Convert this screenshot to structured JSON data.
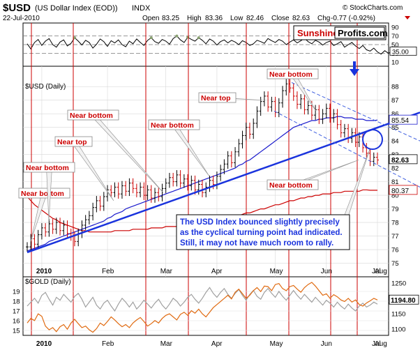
{
  "header": {
    "symbol": "$USD",
    "name": "(US Dollar Index (EOD))",
    "exchange": "INDX",
    "date": "22-Jul-2010",
    "open_label": "Open",
    "open": "83.25",
    "high_label": "High",
    "high": "83.36",
    "low_label": "Low",
    "low": "82.46",
    "close_label": "Close",
    "close": "82.63",
    "chg_label": "Chg",
    "chg": "-0.77 (-0.92%)",
    "copyright": "© StockCharts.com"
  },
  "logo": {
    "part1": "Sunshine",
    "part2": "Profits.com"
  },
  "colors": {
    "price": "#000000",
    "up": "#000000",
    "down": "#cc0000",
    "ma50": "#1a1acc",
    "ma200": "#cc0000",
    "trend": "#1a33dd",
    "channel": "#4060e0",
    "annotation_red": "#cc0000",
    "gold": "#e06a10",
    "usd_overlay": "#a0a0a0",
    "rsi": "#000000",
    "vline": "#cc0000"
  },
  "chart_data": [
    {
      "type": "line",
      "title": "RSI oscillator",
      "ylim": [
        0,
        100
      ],
      "y_ticks": [
        "90",
        "70",
        "50",
        "30",
        "10"
      ],
      "last_value_label": "35.00",
      "values": [
        52,
        40,
        55,
        62,
        48,
        58,
        64,
        50,
        44,
        56,
        61,
        47,
        53,
        66,
        58,
        49,
        60,
        55,
        42,
        51,
        63,
        57,
        46,
        59,
        54,
        61,
        50,
        45,
        58,
        52,
        63,
        55,
        48,
        60,
        66,
        57,
        53,
        62,
        58,
        51,
        64,
        70,
        61,
        55,
        67,
        62,
        58,
        66,
        60,
        52,
        63,
        58,
        49,
        57,
        61,
        54,
        60,
        56,
        50,
        59,
        55,
        48,
        52,
        60,
        57,
        53,
        64,
        59,
        55,
        62,
        58,
        50,
        56,
        61,
        54,
        59,
        65,
        57,
        52,
        60,
        56,
        49,
        55,
        58,
        48,
        52,
        57,
        44,
        50,
        55,
        47,
        41,
        48,
        38,
        35,
        42,
        33,
        28,
        36,
        30,
        33,
        37,
        35
      ]
    },
    {
      "type": "line",
      "title": "$USD (Daily)",
      "xlabel": "",
      "ylabel": "",
      "ylim": [
        74,
        89.5
      ],
      "y_ticks": [
        "88",
        "87",
        "86",
        "85",
        "84",
        "83",
        "82",
        "81",
        "80",
        "79",
        "78",
        "77",
        "76",
        "75"
      ],
      "x_ticks": [
        "2010",
        "Feb",
        "Mar",
        "Apr",
        "May",
        "Jun",
        "Jul",
        "Aug"
      ],
      "close": [
        76.2,
        76.8,
        76.4,
        77.1,
        77.6,
        77.3,
        77.9,
        77.5,
        78.0,
        77.4,
        77.8,
        77.2,
        77.0,
        76.6,
        77.2,
        77.8,
        78.2,
        78.5,
        79.1,
        79.6,
        79.2,
        79.9,
        80.4,
        80.2,
        80.6,
        80.1,
        80.7,
        80.3,
        80.9,
        80.5,
        80.2,
        80.6,
        80.0,
        80.4,
        79.8,
        80.2,
        79.9,
        80.5,
        80.9,
        81.3,
        81.0,
        81.5,
        80.9,
        81.2,
        80.7,
        81.1,
        80.4,
        80.8,
        80.2,
        80.6,
        81.1,
        80.8,
        81.4,
        81.9,
        82.3,
        82.9,
        82.4,
        83.2,
        83.8,
        84.4,
        85.0,
        84.5,
        85.3,
        86.2,
        86.9,
        87.3,
        86.5,
        86.9,
        86.1,
        86.8,
        87.7,
        88.2,
        87.9,
        87.3,
        86.7,
        87.1,
        86.3,
        86.6,
        85.9,
        86.3,
        85.6,
        86.0,
        86.4,
        85.7,
        86.0,
        85.2,
        84.6,
        84.9,
        84.2,
        84.6,
        83.9,
        84.3,
        83.5,
        83.1,
        82.5,
        82.8,
        82.6
      ],
      "ma50": [
        75.9,
        76.0,
        76.1,
        76.2,
        76.3,
        76.4,
        76.6,
        76.7,
        76.8,
        76.9,
        77.0,
        77.1,
        77.2,
        77.3,
        77.4,
        77.5,
        77.6,
        77.7,
        77.8,
        77.9,
        78.0,
        78.1,
        78.3,
        78.4,
        78.6,
        78.7,
        78.8,
        79.0,
        79.1,
        79.2,
        79.3,
        79.4,
        79.5,
        79.6,
        79.7,
        79.8,
        79.9,
        80.0,
        80.1,
        80.2,
        80.3,
        80.4,
        80.5,
        80.6,
        80.7,
        80.8,
        80.9,
        81.0,
        81.1,
        81.2,
        81.3,
        81.4,
        81.5,
        81.6,
        81.7,
        81.8,
        81.9,
        82.0,
        82.2,
        82.3,
        82.5,
        82.6,
        82.8,
        83.0,
        83.2,
        83.4,
        83.6,
        83.8,
        84.0,
        84.2,
        84.4,
        84.6,
        84.8,
        85.0,
        85.1,
        85.2,
        85.3,
        85.4,
        85.5,
        85.5,
        85.6,
        85.6,
        85.7,
        85.7,
        85.7,
        85.8,
        85.8,
        85.7,
        85.7,
        85.7,
        85.6,
        85.6,
        85.6,
        85.5,
        85.5,
        85.5,
        85.54
      ],
      "ma200": [
        79.9,
        79.6,
        79.3,
        79.1,
        78.9,
        78.7,
        78.5,
        78.3,
        78.2,
        78.0,
        77.9,
        77.8,
        77.7,
        77.6,
        77.5,
        77.4,
        77.4,
        77.3,
        77.3,
        77.3,
        77.3,
        77.3,
        77.3,
        77.3,
        77.4,
        77.4,
        77.4,
        77.4,
        77.4,
        77.5,
        77.5,
        77.5,
        77.5,
        77.5,
        77.6,
        77.6,
        77.6,
        77.6,
        77.7,
        77.7,
        77.7,
        77.7,
        77.8,
        77.8,
        77.8,
        77.9,
        77.9,
        77.9,
        78.0,
        78.0,
        78.1,
        78.1,
        78.2,
        78.2,
        78.3,
        78.3,
        78.4,
        78.5,
        78.5,
        78.6,
        78.7,
        78.7,
        78.8,
        78.9,
        79.0,
        79.0,
        79.1,
        79.2,
        79.3,
        79.3,
        79.4,
        79.5,
        79.6,
        79.6,
        79.7,
        79.8,
        79.8,
        79.9,
        79.9,
        80.0,
        80.0,
        80.1,
        80.1,
        80.1,
        80.2,
        80.2,
        80.2,
        80.3,
        80.3,
        80.3,
        80.3,
        80.3,
        80.4,
        80.4,
        80.37,
        80.37,
        80.37
      ],
      "labels": {
        "last_price": "82.63",
        "ma50_value": "85.54",
        "ma200_value": "80.37"
      },
      "annotations": [
        {
          "text": "Near bottom"
        },
        {
          "text": "Near bottom"
        },
        {
          "text": "Near top"
        },
        {
          "text": "Near bottom"
        },
        {
          "text": "Near bottom"
        },
        {
          "text": "Near top"
        },
        {
          "text": "Near bottom"
        },
        {
          "text": "Near bottom"
        }
      ],
      "comment_lines": [
        "The USD Index bounced slightly precisely",
        "as the cyclical turning point had indicated.",
        "Still, it may not have much room to rally."
      ]
    },
    {
      "type": "line",
      "title": "$GOLD (Daily)",
      "ylim_left": [
        14.5,
        20.5
      ],
      "ylim_right": [
        1080,
        1270
      ],
      "y_ticks_left": [
        "19",
        "18",
        "17",
        "16",
        "15"
      ],
      "y_ticks_right": [
        "1250",
        "1150",
        "1100"
      ],
      "x_ticks": [
        "2010",
        "Feb",
        "Mar",
        "Apr",
        "May",
        "Jun",
        "Jul",
        "Aug"
      ],
      "last_value_label": "1194.80",
      "gold": [
        1120,
        1135,
        1128,
        1150,
        1142,
        1110,
        1098,
        1105,
        1092,
        1108,
        1115,
        1100,
        1120,
        1132,
        1118,
        1105,
        1110,
        1098,
        1090,
        1102,
        1120,
        1112,
        1125,
        1140,
        1130,
        1118,
        1108,
        1115,
        1105,
        1120,
        1130,
        1138,
        1125,
        1110,
        1118,
        1128,
        1120,
        1135,
        1145,
        1150,
        1140,
        1130,
        1148,
        1155,
        1145,
        1160,
        1152,
        1165,
        1150,
        1140,
        1155,
        1170,
        1180,
        1190,
        1200,
        1210,
        1198,
        1220,
        1230,
        1215,
        1200,
        1210,
        1225,
        1235,
        1222,
        1240,
        1238,
        1225,
        1245,
        1248,
        1232,
        1225,
        1238,
        1242,
        1230,
        1220,
        1235,
        1245,
        1252,
        1240,
        1225,
        1210,
        1215,
        1200,
        1212,
        1205,
        1195,
        1190,
        1200,
        1188,
        1195,
        1180,
        1175,
        1185,
        1192,
        1200,
        1194.8
      ],
      "usd_overlay": [
        17.5,
        17.9,
        18.3,
        17.8,
        18.6,
        18.9,
        18.2,
        17.6,
        18.4,
        18.1,
        18.7,
        18.3,
        17.9,
        18.5,
        18.8,
        18.2,
        17.4,
        17.9,
        18.4,
        17.6,
        17.2,
        17.8,
        18.1,
        17.5,
        17.0,
        17.7,
        18.3,
        17.9,
        17.4,
        17.9,
        17.2,
        17.6,
        18.1,
        17.7,
        17.3,
        17.8,
        18.2,
        17.6,
        17.2,
        17.7,
        18.3,
        18.0,
        17.5,
        17.9,
        18.4,
        18.7,
        18.2,
        17.8,
        18.3,
        18.9,
        19.4,
        18.8,
        18.4,
        18.9,
        19.3,
        18.7,
        18.3,
        18.8,
        19.2,
        18.6,
        18.1,
        18.7,
        19.1,
        18.5,
        18.2,
        18.9,
        19.3,
        18.8,
        18.4,
        19.0,
        18.5,
        18.1,
        18.6,
        19.1,
        18.6,
        18.2,
        18.7,
        18.3,
        17.9,
        18.4,
        18.0,
        17.6,
        18.1,
        17.8,
        17.4,
        17.9,
        17.5,
        17.2,
        17.7,
        17.3,
        17.0,
        17.5,
        17.8,
        17.4,
        17.6,
        17.9,
        17.7
      ]
    }
  ]
}
